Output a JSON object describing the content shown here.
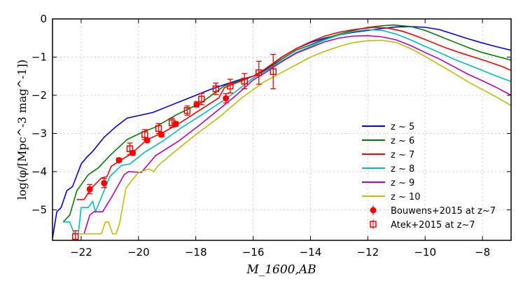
{
  "chart_data": {
    "type": "line",
    "xlabel": "M_1600,AB",
    "ylabel": "log(φ/[Mpc^-3 mag^-1])",
    "xlim": [
      -23,
      -7
    ],
    "ylim": [
      -5.8,
      0
    ],
    "xticks": [
      -22,
      -20,
      -18,
      -16,
      -14,
      -12,
      -10,
      -8
    ],
    "xtick_labels": [
      "−22",
      "−20",
      "−18",
      "−16",
      "−14",
      "−12",
      "−10",
      "−8"
    ],
    "yticks": [
      0,
      -1,
      -2,
      -3,
      -4,
      -5
    ],
    "ytick_labels": [
      "0",
      "−1",
      "−2",
      "−3",
      "−4",
      "−5"
    ],
    "grid": true,
    "legend_position": "lower-right",
    "series": [
      {
        "name": "z ~ 5",
        "color": "#0000ff",
        "x": [
          -23,
          -22.85,
          -22.7,
          -22.5,
          -22.3,
          -22,
          -21.8,
          -21.6,
          -21.2,
          -20.8,
          -20.4,
          -19.5,
          -19,
          -18.5,
          -18,
          -17.5,
          -17,
          -16.5,
          -16,
          -15.6,
          -15,
          -14.5,
          -14,
          -13.5,
          -13,
          -12.5,
          -12,
          -11.5,
          -11,
          -10.5,
          -10,
          -9.5,
          -9,
          -8.5,
          -8,
          -7.5,
          -7
        ],
        "y": [
          -5.75,
          -5.05,
          -4.94,
          -4.5,
          -4.39,
          -3.8,
          -3.62,
          -3.47,
          -3.1,
          -2.83,
          -2.6,
          -2.45,
          -2.3,
          -2.15,
          -2.0,
          -1.85,
          -1.72,
          -1.6,
          -1.5,
          -1.35,
          -1.0,
          -0.78,
          -0.62,
          -0.5,
          -0.42,
          -0.35,
          -0.3,
          -0.25,
          -0.21,
          -0.2,
          -0.22,
          -0.28,
          -0.4,
          -0.52,
          -0.63,
          -0.73,
          -0.82
        ]
      },
      {
        "name": "z ~ 6",
        "color": "#008000",
        "x": [
          -22.63,
          -22.4,
          -22.15,
          -21.75,
          -21.4,
          -21,
          -20.4,
          -19.9,
          -19.4,
          -18.7,
          -17.8,
          -17,
          -16,
          -15.6,
          -15,
          -14.5,
          -14,
          -13.5,
          -13,
          -12.5,
          -12,
          -11.5,
          -11.1,
          -10.5,
          -10,
          -9.5,
          -9,
          -8.5,
          -8,
          -7.5,
          -7
        ],
        "y": [
          -5.32,
          -5.14,
          -4.5,
          -4.08,
          -3.9,
          -3.58,
          -3.16,
          -2.98,
          -2.83,
          -2.52,
          -2.19,
          -1.75,
          -1.5,
          -1.37,
          -1.05,
          -0.82,
          -0.68,
          -0.52,
          -0.4,
          -0.3,
          -0.22,
          -0.18,
          -0.16,
          -0.2,
          -0.3,
          -0.45,
          -0.6,
          -0.75,
          -0.88,
          -0.98,
          -1.08
        ]
      },
      {
        "name": "z ~ 7",
        "color": "#ff0000",
        "x": [
          -22.15,
          -21.9,
          -21.65,
          -21.3,
          -21.1,
          -20.95,
          -20.55,
          -20.25,
          -19.7,
          -19.15,
          -18.5,
          -17.95,
          -17.2,
          -17,
          -16,
          -15.6,
          -15,
          -14.5,
          -14,
          -13.5,
          -13,
          -12.5,
          -11.8,
          -11.3,
          -10.8,
          -10.3,
          -9.8,
          -9.3,
          -8.8,
          -8.3,
          -7.8,
          -7.3,
          -7
        ],
        "y": [
          -4.73,
          -4.73,
          -4.44,
          -4.17,
          -4.13,
          -3.86,
          -3.67,
          -3.53,
          -3.16,
          -2.98,
          -2.7,
          -2.43,
          -2.07,
          -1.8,
          -1.5,
          -1.32,
          -1.0,
          -0.78,
          -0.6,
          -0.45,
          -0.35,
          -0.28,
          -0.22,
          -0.24,
          -0.32,
          -0.45,
          -0.6,
          -0.75,
          -0.88,
          -1.0,
          -1.12,
          -1.25,
          -1.35
        ]
      },
      {
        "name": "z ~ 8",
        "color": "#00bfbf",
        "x": [
          -22.63,
          -22.4,
          -22.24,
          -22.1,
          -22,
          -21.75,
          -21.6,
          -21.5,
          -21.0,
          -20.6,
          -20.3,
          -19.8,
          -19.15,
          -18.5,
          -17.75,
          -16.9,
          -16,
          -15.6,
          -15,
          -14.5,
          -14,
          -13.5,
          -13,
          -12.5,
          -12,
          -11.5,
          -11,
          -10.5,
          -10,
          -9.5,
          -9,
          -8.5,
          -8,
          -7.5,
          -7
        ],
        "y": [
          -5.32,
          -5.32,
          -5.63,
          -5.63,
          -4.94,
          -4.94,
          -4.78,
          -5.05,
          -4.13,
          -3.84,
          -3.8,
          -3.5,
          -3.2,
          -2.85,
          -2.49,
          -2.07,
          -1.55,
          -1.38,
          -1.1,
          -0.88,
          -0.72,
          -0.55,
          -0.42,
          -0.33,
          -0.28,
          -0.3,
          -0.4,
          -0.55,
          -0.72,
          -0.88,
          -1.05,
          -1.2,
          -1.35,
          -1.5,
          -1.64
        ]
      },
      {
        "name": "z ~ 9",
        "color": "#bf00bf",
        "x": [
          -21.9,
          -21.7,
          -21.55,
          -21.25,
          -20.9,
          -20.5,
          -20.35,
          -19.9,
          -19.4,
          -18.6,
          -17.9,
          -16.7,
          -16,
          -15.6,
          -15,
          -14.5,
          -14,
          -13.5,
          -13,
          -12.5,
          -12,
          -11.5,
          -11,
          -10.5,
          -10,
          -9.5,
          -9,
          -8.5,
          -8,
          -7.5,
          -7
        ],
        "y": [
          -5.63,
          -5.14,
          -5.05,
          -5.05,
          -4.62,
          -4.08,
          -4.0,
          -4.02,
          -3.58,
          -3.2,
          -2.8,
          -2.07,
          -1.6,
          -1.42,
          -1.12,
          -0.9,
          -0.75,
          -0.6,
          -0.5,
          -0.45,
          -0.44,
          -0.47,
          -0.55,
          -0.7,
          -0.88,
          -1.05,
          -1.25,
          -1.45,
          -1.62,
          -1.8,
          -2.0
        ]
      },
      {
        "name": "z ~ 10",
        "color": "#bfbf00",
        "x": [
          -22.07,
          -21.3,
          -21.15,
          -21.05,
          -20.9,
          -20.78,
          -20.66,
          -20.44,
          -20.25,
          -20,
          -19.63,
          -19.46,
          -19.34,
          -18.83,
          -18.0,
          -17.2,
          -16.4,
          -15.6,
          -15,
          -14.5,
          -14,
          -13.5,
          -13,
          -12.5,
          -12,
          -11.5,
          -11,
          -10.5,
          -10,
          -9.5,
          -9,
          -8.5,
          -8,
          -7.5,
          -7
        ],
        "y": [
          -5.63,
          -5.63,
          -5.32,
          -5.32,
          -5.63,
          -5.63,
          -5.36,
          -4.44,
          -4.25,
          -4.02,
          -3.93,
          -4.0,
          -3.86,
          -3.53,
          -3.03,
          -2.58,
          -2.07,
          -1.64,
          -1.4,
          -1.2,
          -1.0,
          -0.85,
          -0.72,
          -0.62,
          -0.57,
          -0.56,
          -0.62,
          -0.78,
          -0.98,
          -1.2,
          -1.42,
          -1.65,
          -1.85,
          -2.05,
          -2.27
        ]
      }
    ],
    "points": [
      {
        "name": "Bouwens+2015 at z~7",
        "color": "#ff0000",
        "marker": "filled-circle",
        "x": [
          -21.7,
          -21.2,
          -20.68,
          -20.2,
          -19.7,
          -19.2,
          -18.7,
          -17.97,
          -16.95
        ],
        "y": [
          -4.46,
          -4.3,
          -3.7,
          -3.51,
          -3.18,
          -3.03,
          -2.75,
          -2.24,
          -2.08
        ],
        "err": [
          0.12,
          0.12,
          0.05,
          0.06,
          0.05,
          0.06,
          0.06,
          0.07,
          0.12
        ]
      },
      {
        "name": "Atek+2015 at z~7",
        "color": "#ff0000",
        "marker": "open-square",
        "x": [
          -22.2,
          -20.3,
          -19.78,
          -19.3,
          -18.83,
          -18.3,
          -17.8,
          -17.3,
          -16.8,
          -16.3,
          -15.8,
          -15.3
        ],
        "y": [
          -5.7,
          -3.4,
          -3.03,
          -2.87,
          -2.72,
          -2.4,
          -2.1,
          -1.83,
          -1.76,
          -1.63,
          -1.41,
          -1.38
        ],
        "err": [
          0.15,
          0.15,
          0.13,
          0.13,
          0.12,
          0.12,
          0.15,
          0.15,
          0.18,
          0.2,
          0.3,
          0.45
        ]
      }
    ]
  }
}
